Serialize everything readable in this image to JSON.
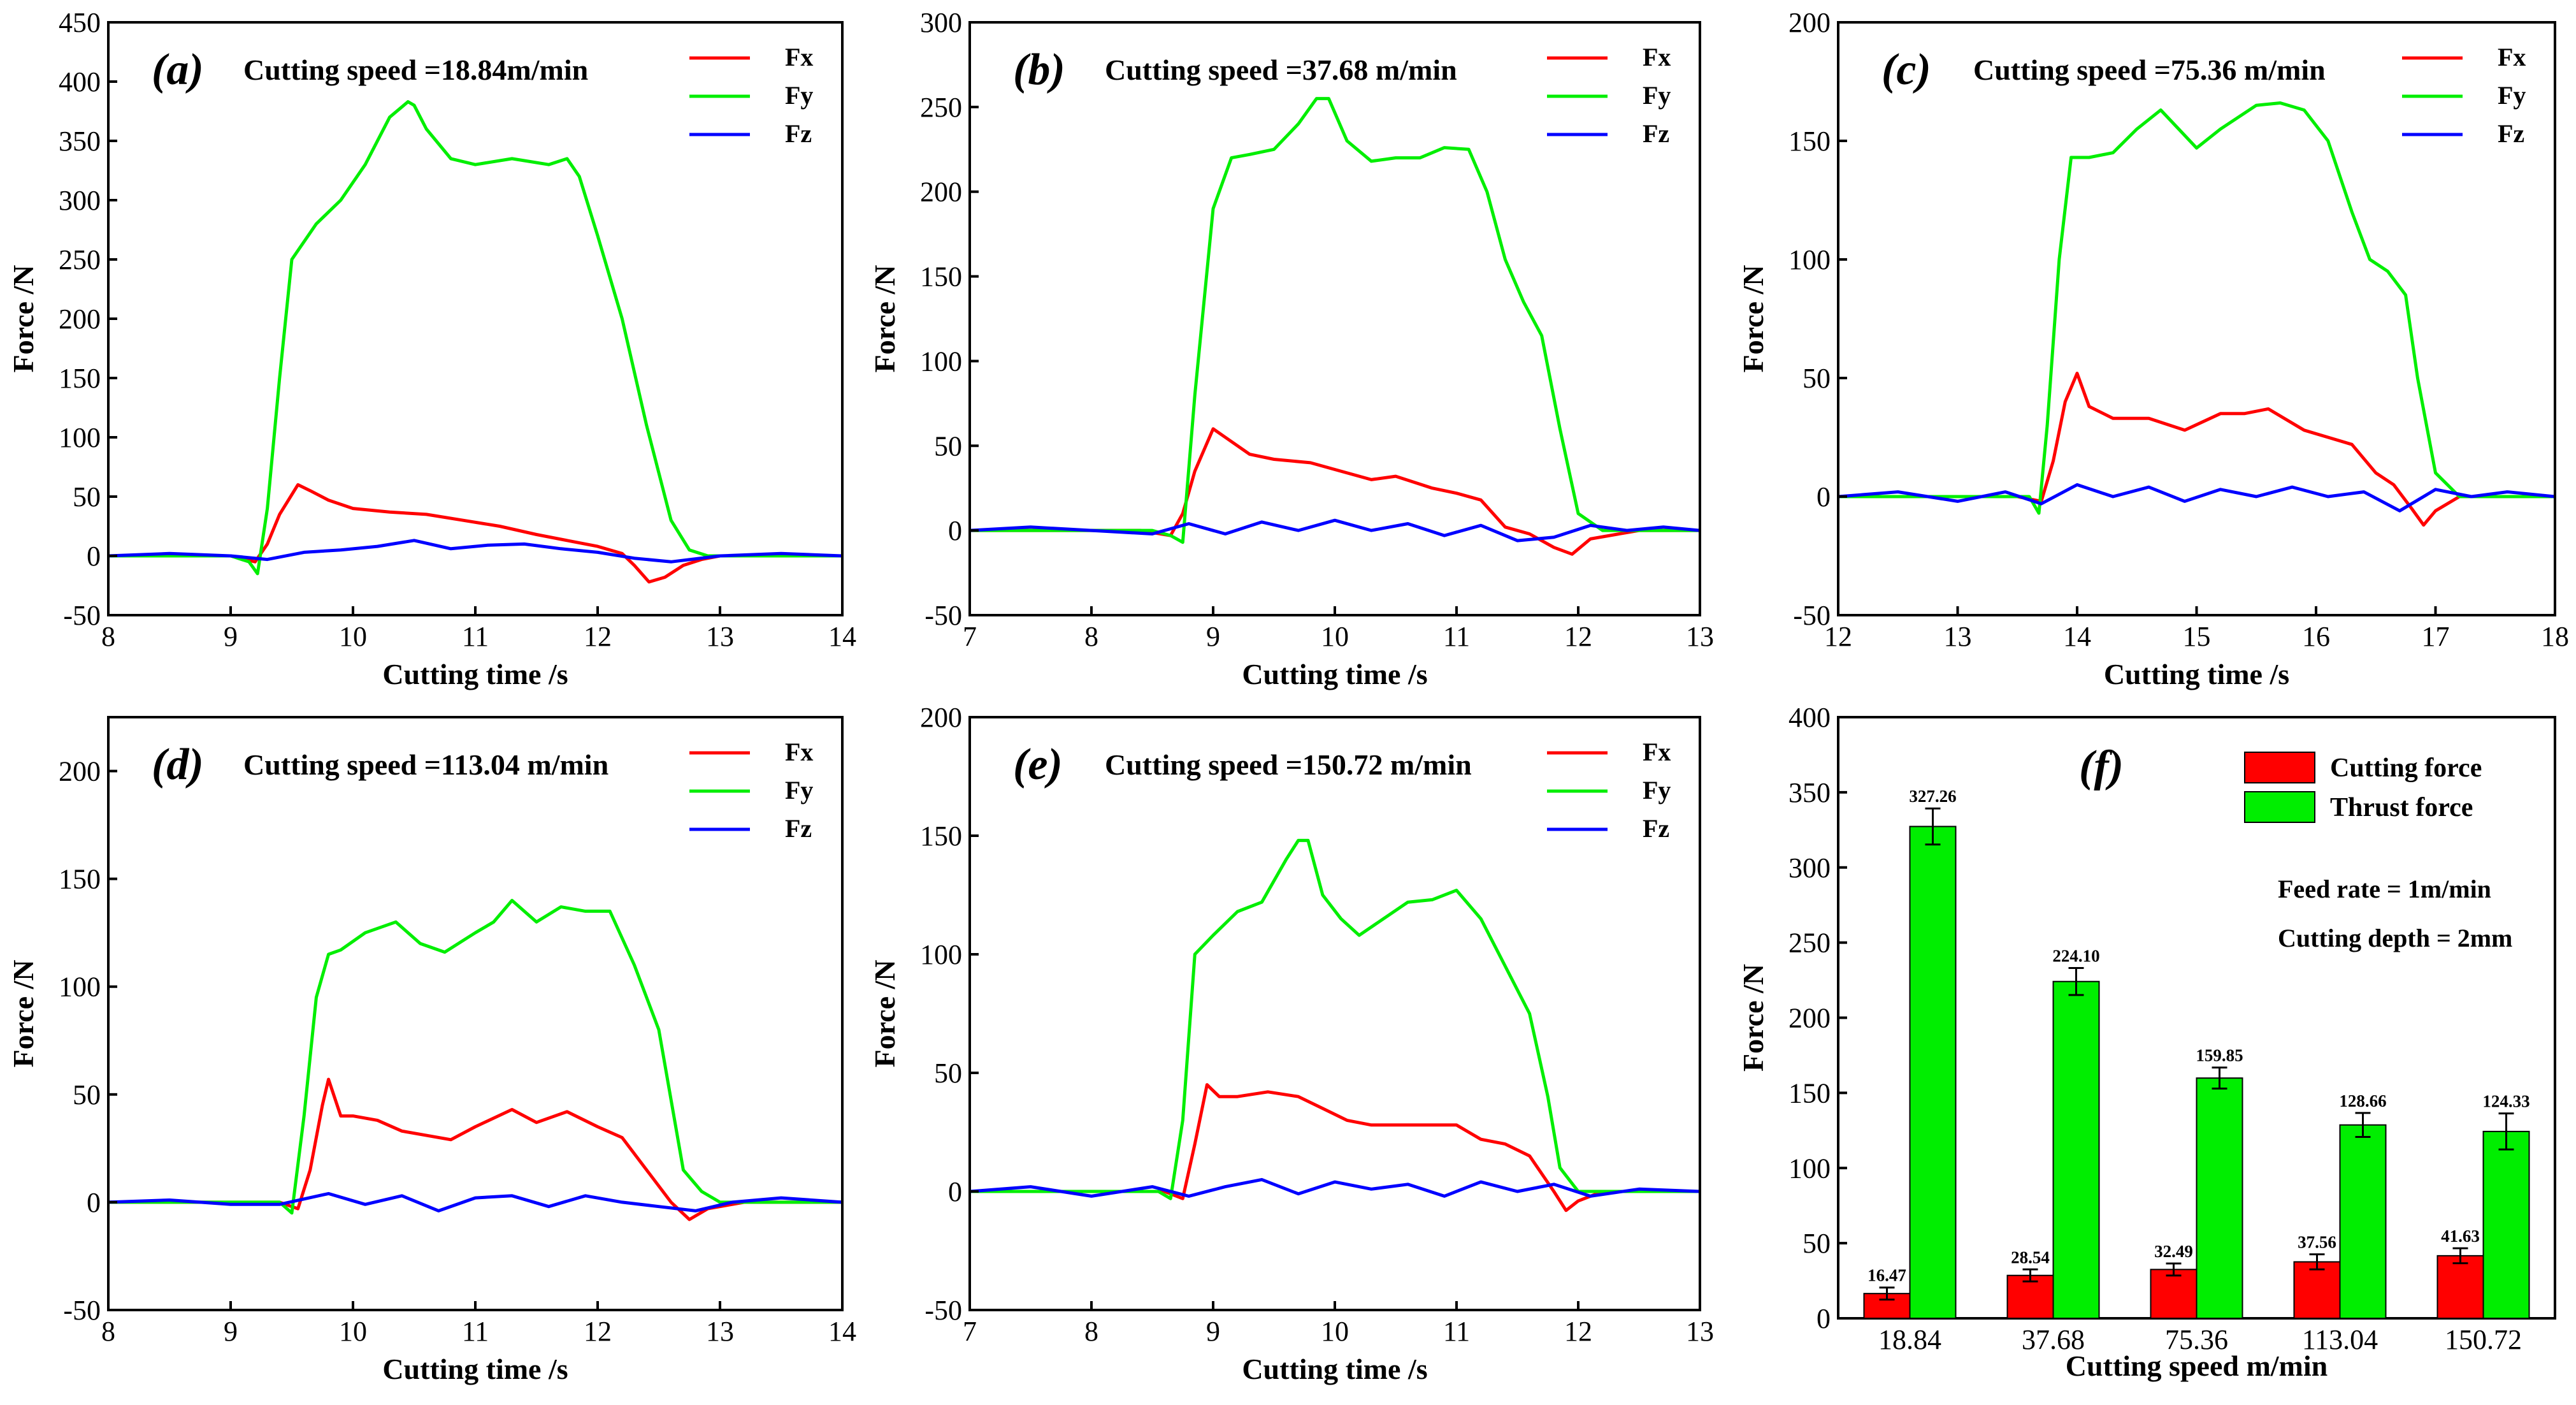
{
  "colors": {
    "Fx": "#ff0000",
    "Fy": "#00ee00",
    "Fz": "#0000ff",
    "axis": "#000000"
  },
  "chart_data": [
    {
      "id": "a",
      "type": "line",
      "tag": "a",
      "label": "Cutting speed =18.84m/min",
      "xlabel": "Cutting time /s",
      "ylabel": "Force /N",
      "xlim": [
        8,
        14
      ],
      "ylim": [
        -50,
        450
      ],
      "xticks": [
        8,
        9,
        10,
        11,
        12,
        13,
        14
      ],
      "yticks": [
        -50,
        0,
        50,
        100,
        150,
        200,
        250,
        300,
        350,
        400,
        450
      ],
      "legend": [
        "Fx",
        "Fy",
        "Fz"
      ],
      "series": [
        {
          "name": "Fx",
          "x": [
            8,
            9.0,
            9.2,
            9.3,
            9.4,
            9.55,
            9.65,
            9.8,
            10.0,
            10.3,
            10.6,
            10.9,
            11.2,
            11.5,
            11.8,
            12.0,
            12.2,
            12.3,
            12.42,
            12.55,
            12.7,
            12.85,
            13.0,
            13.5,
            14
          ],
          "y": [
            0,
            0,
            -5,
            10,
            35,
            60,
            55,
            47,
            40,
            37,
            35,
            30,
            25,
            18,
            12,
            8,
            2,
            -8,
            -22,
            -18,
            -8,
            -3,
            0,
            0,
            0
          ]
        },
        {
          "name": "Fy",
          "x": [
            8,
            9.0,
            9.15,
            9.22,
            9.3,
            9.4,
            9.5,
            9.7,
            9.9,
            10.1,
            10.3,
            10.45,
            10.5,
            10.6,
            10.8,
            11.0,
            11.3,
            11.6,
            11.75,
            11.85,
            12.0,
            12.2,
            12.4,
            12.6,
            12.75,
            12.9,
            13.5,
            14
          ],
          "y": [
            0,
            0,
            -5,
            -15,
            40,
            150,
            250,
            280,
            300,
            330,
            370,
            383,
            380,
            360,
            335,
            330,
            335,
            330,
            335,
            320,
            270,
            200,
            110,
            30,
            5,
            0,
            0,
            0
          ]
        },
        {
          "name": "Fz",
          "x": [
            8,
            8.5,
            9.0,
            9.3,
            9.6,
            9.9,
            10.2,
            10.5,
            10.8,
            11.1,
            11.4,
            11.7,
            12.0,
            12.3,
            12.6,
            13.0,
            13.5,
            14
          ],
          "y": [
            0,
            2,
            0,
            -3,
            3,
            5,
            8,
            13,
            6,
            9,
            10,
            6,
            3,
            -2,
            -5,
            0,
            2,
            0
          ]
        }
      ]
    },
    {
      "id": "b",
      "type": "line",
      "tag": "b",
      "label": "Cutting speed =37.68 m/min",
      "xlabel": "Cutting time /s",
      "ylabel": "Force /N",
      "xlim": [
        7,
        13
      ],
      "ylim": [
        -50,
        300
      ],
      "xticks": [
        7,
        8,
        9,
        10,
        11,
        12,
        13
      ],
      "yticks": [
        -50,
        0,
        50,
        100,
        150,
        200,
        250,
        300
      ],
      "legend": [
        "Fx",
        "Fy",
        "Fz"
      ],
      "series": [
        {
          "name": "Fx",
          "x": [
            7,
            8.4,
            8.65,
            8.75,
            8.85,
            9.0,
            9.1,
            9.3,
            9.5,
            9.8,
            10.0,
            10.3,
            10.5,
            10.8,
            11.0,
            11.2,
            11.4,
            11.6,
            11.8,
            11.95,
            12.1,
            12.5,
            13
          ],
          "y": [
            0,
            0,
            -3,
            10,
            35,
            60,
            55,
            45,
            42,
            40,
            36,
            30,
            32,
            25,
            22,
            18,
            2,
            -2,
            -10,
            -14,
            -5,
            0,
            0
          ]
        },
        {
          "name": "Fy",
          "x": [
            7,
            8.5,
            8.65,
            8.75,
            8.85,
            9.0,
            9.15,
            9.3,
            9.5,
            9.7,
            9.85,
            9.95,
            10.1,
            10.3,
            10.5,
            10.7,
            10.9,
            11.1,
            11.25,
            11.4,
            11.55,
            11.7,
            11.85,
            12.0,
            12.2,
            12.5,
            13
          ],
          "y": [
            0,
            0,
            -3,
            -7,
            80,
            190,
            220,
            222,
            225,
            240,
            255,
            255,
            230,
            218,
            220,
            220,
            226,
            225,
            200,
            160,
            135,
            115,
            60,
            10,
            0,
            0,
            0
          ]
        },
        {
          "name": "Fz",
          "x": [
            7,
            7.5,
            8.0,
            8.5,
            8.8,
            9.1,
            9.4,
            9.7,
            10.0,
            10.3,
            10.6,
            10.9,
            11.2,
            11.5,
            11.8,
            12.1,
            12.4,
            12.7,
            13
          ],
          "y": [
            0,
            2,
            0,
            -2,
            4,
            -2,
            5,
            0,
            6,
            0,
            4,
            -3,
            3,
            -6,
            -4,
            3,
            0,
            2,
            0
          ]
        }
      ]
    },
    {
      "id": "c",
      "type": "line",
      "tag": "c",
      "label": "Cutting speed =75.36 m/min",
      "xlabel": "Cutting time /s",
      "ylabel": "Force /N",
      "xlim": [
        12,
        18
      ],
      "ylim": [
        -50,
        200
      ],
      "xticks": [
        12,
        13,
        14,
        15,
        16,
        17,
        18
      ],
      "yticks": [
        -50,
        0,
        50,
        100,
        150,
        200
      ],
      "legend": [
        "Fx",
        "Fy",
        "Fz"
      ],
      "series": [
        {
          "name": "Fx",
          "x": [
            12,
            13.5,
            13.7,
            13.8,
            13.9,
            14.0,
            14.1,
            14.3,
            14.6,
            14.9,
            15.2,
            15.4,
            15.6,
            15.9,
            16.1,
            16.3,
            16.5,
            16.65,
            16.8,
            16.9,
            17.0,
            17.2,
            18
          ],
          "y": [
            0,
            0,
            -2,
            15,
            40,
            52,
            38,
            33,
            33,
            28,
            35,
            35,
            37,
            28,
            25,
            22,
            10,
            5,
            -5,
            -12,
            -6,
            0,
            0
          ]
        },
        {
          "name": "Fy",
          "x": [
            12,
            13.6,
            13.68,
            13.75,
            13.85,
            13.95,
            14.1,
            14.3,
            14.5,
            14.7,
            14.85,
            15.0,
            15.2,
            15.5,
            15.7,
            15.9,
            16.1,
            16.3,
            16.45,
            16.6,
            16.75,
            16.85,
            17.0,
            17.2,
            18
          ],
          "y": [
            0,
            0,
            -7,
            30,
            100,
            143,
            143,
            145,
            155,
            163,
            155,
            147,
            155,
            165,
            166,
            163,
            150,
            120,
            100,
            95,
            85,
            50,
            10,
            0,
            0
          ]
        },
        {
          "name": "Fz",
          "x": [
            12,
            12.5,
            13.0,
            13.4,
            13.7,
            14.0,
            14.3,
            14.6,
            14.9,
            15.2,
            15.5,
            15.8,
            16.1,
            16.4,
            16.7,
            17.0,
            17.3,
            17.6,
            18
          ],
          "y": [
            0,
            2,
            -2,
            2,
            -3,
            5,
            0,
            4,
            -2,
            3,
            0,
            4,
            0,
            2,
            -6,
            3,
            0,
            2,
            0
          ]
        }
      ]
    },
    {
      "id": "d",
      "type": "line",
      "tag": "d",
      "label": "Cutting speed =113.04 m/min",
      "xlabel": "Cutting time /s",
      "ylabel": "Force /N",
      "xlim": [
        8,
        14
      ],
      "ylim": [
        -50,
        225
      ],
      "xticks": [
        8,
        9,
        10,
        11,
        12,
        13,
        14
      ],
      "yticks": [
        -50,
        0,
        50,
        100,
        150,
        200
      ],
      "legend": [
        "Fx",
        "Fy",
        "Fz"
      ],
      "series": [
        {
          "name": "Fx",
          "x": [
            8,
            9.4,
            9.55,
            9.65,
            9.75,
            9.8,
            9.9,
            10.0,
            10.2,
            10.4,
            10.6,
            10.8,
            11.0,
            11.3,
            11.5,
            11.75,
            12.0,
            12.2,
            12.4,
            12.6,
            12.75,
            12.9,
            13.2,
            14
          ],
          "y": [
            0,
            0,
            -3,
            15,
            45,
            57,
            40,
            40,
            38,
            33,
            31,
            29,
            35,
            43,
            37,
            42,
            35,
            30,
            15,
            0,
            -8,
            -3,
            0,
            0
          ]
        },
        {
          "name": "Fy",
          "x": [
            8,
            9.4,
            9.5,
            9.6,
            9.7,
            9.8,
            9.9,
            10.1,
            10.35,
            10.55,
            10.75,
            11.0,
            11.15,
            11.3,
            11.5,
            11.7,
            11.9,
            12.1,
            12.3,
            12.5,
            12.7,
            12.85,
            13.0,
            14
          ],
          "y": [
            0,
            0,
            -5,
            40,
            95,
            115,
            117,
            125,
            130,
            120,
            116,
            125,
            130,
            140,
            130,
            137,
            135,
            135,
            110,
            80,
            15,
            5,
            0,
            0
          ]
        },
        {
          "name": "Fz",
          "x": [
            8,
            8.5,
            9.0,
            9.4,
            9.8,
            10.1,
            10.4,
            10.7,
            11.0,
            11.3,
            11.6,
            11.9,
            12.2,
            12.5,
            12.8,
            13.1,
            13.5,
            14
          ],
          "y": [
            0,
            1,
            -1,
            -1,
            4,
            -1,
            3,
            -4,
            2,
            3,
            -2,
            3,
            0,
            -2,
            -4,
            0,
            2,
            0
          ]
        }
      ]
    },
    {
      "id": "e",
      "type": "line",
      "tag": "e",
      "label": "Cutting speed =150.72 m/min",
      "xlabel": "Cutting time /s",
      "ylabel": "Force /N",
      "xlim": [
        7,
        13
      ],
      "ylim": [
        -50,
        200
      ],
      "xticks": [
        7,
        8,
        9,
        10,
        11,
        12,
        13
      ],
      "yticks": [
        -50,
        0,
        50,
        100,
        150,
        200
      ],
      "legend": [
        "Fx",
        "Fy",
        "Fz"
      ],
      "series": [
        {
          "name": "Fx",
          "x": [
            7,
            8.6,
            8.75,
            8.85,
            8.95,
            9.05,
            9.2,
            9.45,
            9.7,
            9.9,
            10.1,
            10.3,
            10.5,
            10.8,
            11.0,
            11.2,
            11.4,
            11.6,
            11.8,
            11.9,
            12.0,
            12.2,
            13
          ],
          "y": [
            0,
            0,
            -3,
            20,
            45,
            40,
            40,
            42,
            40,
            35,
            30,
            28,
            28,
            28,
            28,
            22,
            20,
            15,
            0,
            -8,
            -4,
            0,
            0
          ]
        },
        {
          "name": "Fy",
          "x": [
            7,
            8.55,
            8.65,
            8.75,
            8.85,
            9.0,
            9.2,
            9.4,
            9.6,
            9.7,
            9.78,
            9.9,
            10.05,
            10.2,
            10.4,
            10.6,
            10.8,
            11.0,
            11.2,
            11.4,
            11.6,
            11.75,
            11.85,
            12.0,
            12.2,
            13
          ],
          "y": [
            0,
            0,
            -3,
            30,
            100,
            108,
            118,
            122,
            140,
            148,
            148,
            125,
            115,
            108,
            115,
            122,
            123,
            127,
            115,
            95,
            75,
            40,
            10,
            0,
            0,
            0
          ]
        },
        {
          "name": "Fz",
          "x": [
            7,
            7.5,
            8.0,
            8.5,
            8.8,
            9.1,
            9.4,
            9.7,
            10.0,
            10.3,
            10.6,
            10.9,
            11.2,
            11.5,
            11.8,
            12.1,
            12.5,
            13
          ],
          "y": [
            0,
            2,
            -2,
            2,
            -2,
            2,
            5,
            -1,
            4,
            1,
            3,
            -2,
            4,
            0,
            3,
            -2,
            1,
            0
          ]
        }
      ]
    },
    {
      "id": "f",
      "type": "bar",
      "tag": "f",
      "xlabel": "Cutting speed m/min",
      "ylabel": "Force /N",
      "ylim": [
        0,
        400
      ],
      "yticks": [
        0,
        50,
        100,
        150,
        200,
        250,
        300,
        350,
        400
      ],
      "categories": [
        "18.84",
        "37.68",
        "75.36",
        "113.04",
        "150.72"
      ],
      "series": [
        {
          "name": "Cutting force",
          "values": [
            16.47,
            28.54,
            32.49,
            37.56,
            41.63
          ],
          "errors": [
            4,
            4,
            4,
            5,
            5
          ],
          "labels": [
            "16.47",
            "28.54",
            "32.49",
            "37.56",
            "41.63"
          ]
        },
        {
          "name": "Thrust force",
          "values": [
            327.26,
            224.1,
            159.85,
            128.66,
            124.33
          ],
          "errors": [
            12,
            9,
            7,
            8,
            12
          ],
          "labels": [
            "327.26",
            "224.10",
            "159.85",
            "128.66",
            "124.33"
          ]
        }
      ],
      "notes": [
        "Feed rate = 1m/min",
        "Cutting depth = 2mm"
      ]
    }
  ]
}
